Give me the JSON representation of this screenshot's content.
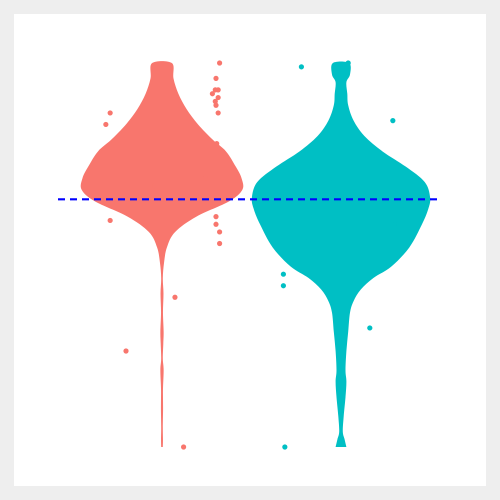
{
  "chart_data": {
    "type": "violin",
    "ylim": [
      0,
      1
    ],
    "grid": false,
    "legend": "none",
    "reference_line": {
      "y": 0.645,
      "style": "dashed",
      "color": "#0000FF"
    },
    "series": [
      {
        "color": "#F8766D",
        "profile": [
          [
            0.0,
            0.01
          ],
          [
            0.02,
            0.012
          ],
          [
            0.05,
            0.01
          ],
          [
            0.1,
            0.013
          ],
          [
            0.15,
            0.012
          ],
          [
            0.2,
            0.02
          ],
          [
            0.23,
            0.01
          ],
          [
            0.27,
            0.016
          ],
          [
            0.3,
            0.02
          ],
          [
            0.35,
            0.012
          ],
          [
            0.4,
            0.018
          ],
          [
            0.44,
            0.01
          ],
          [
            0.48,
            0.025
          ],
          [
            0.52,
            0.06
          ],
          [
            0.56,
            0.16
          ],
          [
            0.6,
            0.42
          ],
          [
            0.64,
            0.82
          ],
          [
            0.67,
            0.98
          ],
          [
            0.7,
            0.97
          ],
          [
            0.73,
            0.9
          ],
          [
            0.77,
            0.78
          ],
          [
            0.8,
            0.62
          ],
          [
            0.84,
            0.44
          ],
          [
            0.88,
            0.3
          ],
          [
            0.92,
            0.2
          ],
          [
            0.96,
            0.14
          ],
          [
            1.0,
            0.12
          ]
        ],
        "points": [
          [
            0.8,
            1.0
          ],
          [
            0.75,
            0.96
          ],
          [
            0.74,
            0.93
          ],
          [
            0.78,
            0.93
          ],
          [
            0.7,
            0.92
          ],
          [
            0.78,
            0.91
          ],
          [
            0.74,
            0.9
          ],
          [
            0.75,
            0.89
          ],
          [
            -0.72,
            0.87
          ],
          [
            0.78,
            0.87
          ],
          [
            -0.78,
            0.84
          ],
          [
            0.76,
            0.79
          ],
          [
            0.6,
            0.7
          ],
          [
            -0.1,
            0.68
          ],
          [
            -0.85,
            0.65
          ],
          [
            -0.6,
            0.62
          ],
          [
            0.75,
            0.6
          ],
          [
            -0.72,
            0.59
          ],
          [
            0.75,
            0.58
          ],
          [
            0.8,
            0.56
          ],
          [
            0.8,
            0.53
          ],
          [
            0.18,
            0.39
          ],
          [
            -0.5,
            0.25
          ],
          [
            0.3,
            0.0
          ]
        ]
      },
      {
        "color": "#00BFC4",
        "profile": [
          [
            0.0,
            0.06
          ],
          [
            0.02,
            0.04
          ],
          [
            0.04,
            0.02
          ],
          [
            0.08,
            0.03
          ],
          [
            0.13,
            0.05
          ],
          [
            0.17,
            0.06
          ],
          [
            0.2,
            0.05
          ],
          [
            0.25,
            0.06
          ],
          [
            0.3,
            0.08
          ],
          [
            0.35,
            0.1
          ],
          [
            0.38,
            0.14
          ],
          [
            0.41,
            0.22
          ],
          [
            0.44,
            0.36
          ],
          [
            0.47,
            0.56
          ],
          [
            0.52,
            0.76
          ],
          [
            0.58,
            0.9
          ],
          [
            0.62,
            0.97
          ],
          [
            0.65,
            0.99
          ],
          [
            0.69,
            0.93
          ],
          [
            0.73,
            0.72
          ],
          [
            0.77,
            0.46
          ],
          [
            0.81,
            0.26
          ],
          [
            0.85,
            0.14
          ],
          [
            0.89,
            0.08
          ],
          [
            0.92,
            0.07
          ],
          [
            0.95,
            0.06
          ],
          [
            0.97,
            0.1
          ],
          [
            1.0,
            0.09
          ]
        ],
        "points": [
          [
            0.1,
            1.0
          ],
          [
            -0.55,
            0.99
          ],
          [
            0.72,
            0.85
          ],
          [
            -0.12,
            0.7
          ],
          [
            0.85,
            0.63
          ],
          [
            0.75,
            0.58
          ],
          [
            0.8,
            0.58
          ],
          [
            -0.45,
            0.54
          ],
          [
            -0.8,
            0.45
          ],
          [
            -0.8,
            0.42
          ],
          [
            0.4,
            0.31
          ],
          [
            -0.78,
            0.0
          ]
        ]
      }
    ]
  }
}
